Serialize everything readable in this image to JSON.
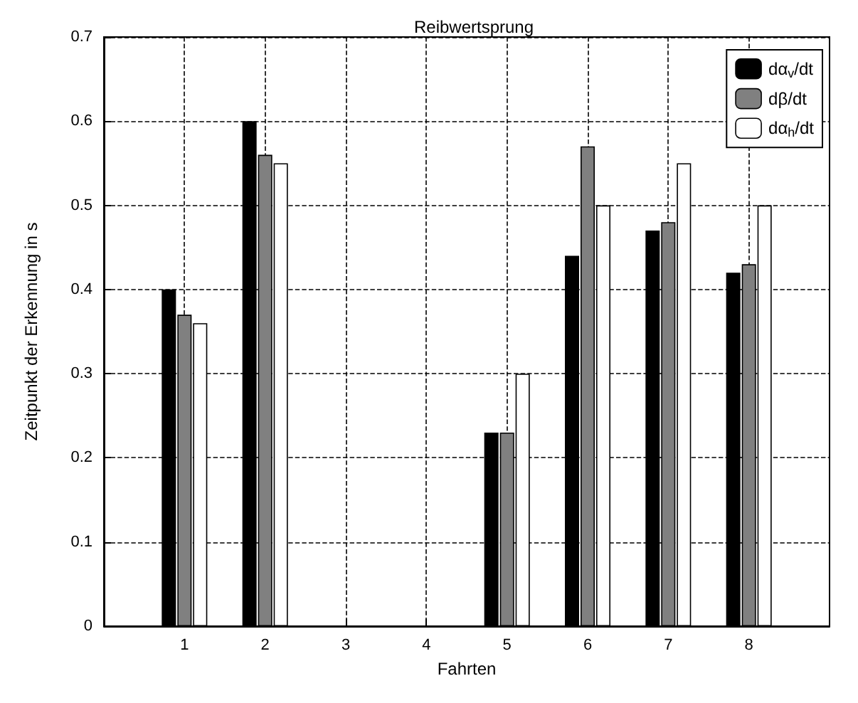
{
  "chart_data": {
    "type": "bar",
    "title": "Reibwertsprung",
    "xlabel": "Fahrten",
    "ylabel": "Zeitpunkt der Erkennung in s",
    "x": [
      1,
      2,
      3,
      4,
      5,
      6,
      7,
      8
    ],
    "xlim": [
      0,
      9
    ],
    "xticks": [
      1,
      2,
      3,
      4,
      5,
      6,
      7,
      8
    ],
    "ylim": [
      0,
      0.7
    ],
    "yticks": [
      0,
      0.1,
      0.2,
      0.3,
      0.4,
      0.5,
      0.6,
      0.7
    ],
    "series": [
      {
        "name": "dα$_{v}$/dt",
        "color": "#000000",
        "values": [
          0.4,
          0.6,
          null,
          null,
          0.23,
          0.44,
          0.47,
          0.42
        ]
      },
      {
        "name": "dβ/dt",
        "color": "#808080",
        "values": [
          0.37,
          0.56,
          null,
          null,
          0.23,
          0.57,
          0.48,
          0.43
        ]
      },
      {
        "name": "dα$_{h}$/dt",
        "color": "#ffffff",
        "values": [
          0.36,
          0.55,
          null,
          null,
          0.3,
          0.5,
          0.55,
          0.5
        ]
      }
    ],
    "grid": true,
    "legend": "top right"
  }
}
